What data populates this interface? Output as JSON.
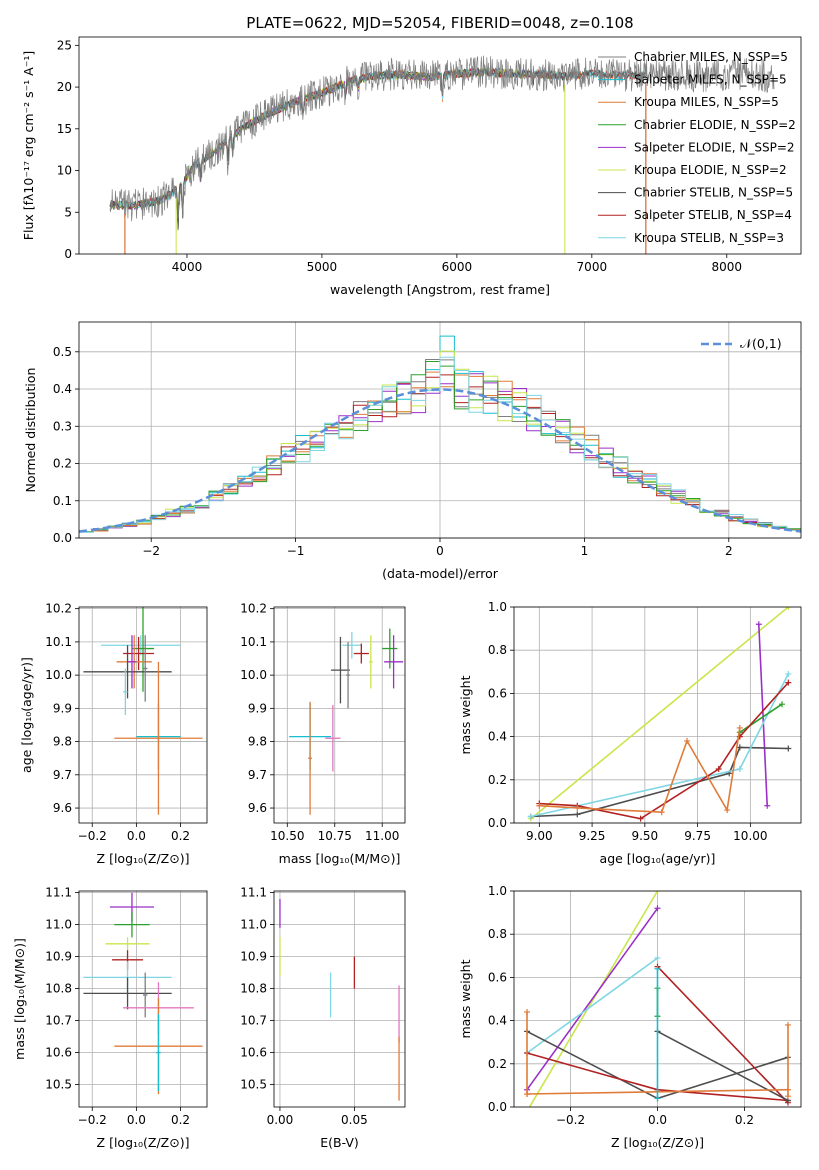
{
  "figure_title": "PLATE=0622, MJD=52054, FIBERID=0048, z=0.108",
  "colors": {
    "chabrier_miles": "#7f7f7f",
    "salpeter_miles": "#17becf",
    "kroupa_miles": "#e07b39",
    "chabrier_elodie": "#2ca02c",
    "salpeter_elodie": "#9b30c8",
    "kroupa_elodie": "#c8e64a",
    "chabrier_stelib": "#4d4d4d",
    "salpeter_stelib": "#b22222",
    "kroupa_stelib": "#7fd6e3",
    "pink": "#e377c2",
    "gaussian": "#5b8fd9"
  },
  "chart_data": [
    {
      "type": "line",
      "title": "PLATE=0622, MJD=52054, FIBERID=0048, z=0.108",
      "xlabel": "wavelength [Angstrom, rest frame]",
      "ylabel": "Flux [fλ10⁻¹⁷ erg cm⁻² s⁻¹ A⁻¹]",
      "xlim": [
        3200,
        8550
      ],
      "ylim": [
        0,
        26
      ],
      "xticks": [
        "4000",
        "5000",
        "6000",
        "7000",
        "8000"
      ],
      "yticks": [
        "0",
        "5",
        "10",
        "15",
        "20",
        "25"
      ],
      "legend_position": "upper right",
      "legend": [
        "Chabrier MILES, N_SSP=5",
        "Salpeter MILES, N_SSP=5",
        "Kroupa MILES, N_SSP=5",
        "Chabrier ELODIE, N_SSP=2",
        "Salpeter ELODIE, N_SSP=2",
        "Kroupa ELODIE, N_SSP=2",
        "Chabrier STELIB, N_SSP=5",
        "Salpeter STELIB, N_SSP=4",
        "Kroupa STELIB, N_SSP=3"
      ],
      "continuum": {
        "x": [
          3400,
          3600,
          3800,
          3950,
          4050,
          4200,
          4400,
          4600,
          4800,
          5000,
          5200,
          5400,
          5600,
          5800,
          6000,
          6200,
          6400,
          6600,
          6800,
          7000,
          7200,
          7400,
          7600,
          7800,
          8000,
          8200,
          8350
        ],
        "y": [
          5.9,
          5.8,
          6.4,
          8.0,
          10.5,
          12.2,
          15.0,
          16.8,
          18.2,
          19.3,
          20.7,
          21.4,
          21.5,
          21.2,
          21.6,
          21.8,
          21.6,
          21.6,
          21.3,
          21.6,
          21.4,
          21.4,
          21.4,
          21.3,
          21.6,
          21.6,
          21.1
        ]
      }
    },
    {
      "type": "bar",
      "xlabel": "(data-model)/error",
      "ylabel": "Normed distribution",
      "xlim": [
        -2.5,
        2.5
      ],
      "ylim": [
        0,
        0.58
      ],
      "xticks": [
        "−2",
        "−1",
        "0",
        "1",
        "2"
      ],
      "yticks": [
        "0.0",
        "0.1",
        "0.2",
        "0.3",
        "0.4",
        "0.5"
      ],
      "legend": [
        "𝒩(0,1)"
      ],
      "legend_position": "upper right",
      "bin_width": 0.1,
      "bin_start": -2.5,
      "series": [
        {
          "color": "#17becf",
          "offset": 0.012,
          "seed": 3
        },
        {
          "color": "#7f7f7f",
          "offset": -0.01,
          "seed": 7
        },
        {
          "color": "#9b30c8",
          "offset": 0.0,
          "seed": 11
        },
        {
          "color": "#c8e64a",
          "offset": 0.018,
          "seed": 13
        },
        {
          "color": "#b22222",
          "offset": 0.005,
          "seed": 17
        },
        {
          "color": "#e07b39",
          "offset": -0.004,
          "seed": 19
        },
        {
          "color": "#2ca02c",
          "offset": 0.008,
          "seed": 23
        },
        {
          "color": "#7fd6e3",
          "offset": -0.015,
          "seed": 29
        }
      ]
    },
    {
      "type": "scatter",
      "name": "age_vs_Z",
      "xlabel": "Z [log₁₀(Z/Z⊙)]",
      "ylabel": "age  [log₁₀(age/yr)]",
      "xlim": [
        -0.26,
        0.32
      ],
      "ylim": [
        9.555,
        10.205
      ],
      "xticks": [
        "−0.2",
        "0.0",
        "0.2"
      ],
      "yticks": [
        "9.6",
        "9.7",
        "9.8",
        "9.9",
        "10.0",
        "10.1",
        "10.2"
      ],
      "points": [
        {
          "x": 0.02,
          "y": 10.09,
          "xerr": 0.18,
          "yerr": 0.03,
          "color": "#7fd6e3"
        },
        {
          "x": 0.03,
          "y": 10.08,
          "xerr": 0.05,
          "yerr": 0.13,
          "color": "#2ca02c"
        },
        {
          "x": 0.01,
          "y": 10.065,
          "xerr": 0.07,
          "yerr": 0.05,
          "color": "#b22222"
        },
        {
          "x": -0.01,
          "y": 10.04,
          "xerr": 0.08,
          "yerr": 0.08,
          "color": "#e07b39"
        },
        {
          "x": -0.04,
          "y": 10.01,
          "xerr": 0.2,
          "yerr": 0.08,
          "color": "#4d4d4d"
        },
        {
          "x": -0.02,
          "y": 10.04,
          "xerr": 0.02,
          "yerr": 0.08,
          "color": "#9b30c8"
        },
        {
          "x": 0.1,
          "y": 9.815,
          "xerr": 0.1,
          "yerr": 0.1,
          "color": "#17becf"
        },
        {
          "x": 0.1,
          "y": 9.81,
          "xerr": 0.2,
          "yerr": 0.23,
          "color": "#e07b39"
        },
        {
          "x": 0.04,
          "y": 10.02,
          "xerr": 0.01,
          "yerr": 0.1,
          "color": "#7f7f7f"
        },
        {
          "x": -0.05,
          "y": 9.95,
          "xerr": 0.01,
          "yerr": 0.07,
          "color": "#7fd6e3"
        }
      ]
    },
    {
      "type": "scatter",
      "name": "age_vs_mass",
      "xlabel": "mass [log₁₀(M/M⊙)]",
      "ylabel": "",
      "xlim": [
        10.43,
        11.12
      ],
      "ylim": [
        9.555,
        10.205
      ],
      "xticks": [
        "10.50",
        "10.75",
        "11.00"
      ],
      "yticks": [
        "9.6",
        "9.7",
        "9.8",
        "9.9",
        "10.0",
        "10.1",
        "10.2"
      ],
      "points": [
        {
          "x": 10.84,
          "y": 10.09,
          "xerr": 0.05,
          "yerr": 0.04,
          "color": "#7fd6e3"
        },
        {
          "x": 11.04,
          "y": 10.08,
          "xerr": 0.04,
          "yerr": 0.06,
          "color": "#2ca02c"
        },
        {
          "x": 11.06,
          "y": 10.04,
          "xerr": 0.05,
          "yerr": 0.08,
          "color": "#9b30c8"
        },
        {
          "x": 10.94,
          "y": 10.04,
          "xerr": 0.01,
          "yerr": 0.08,
          "color": "#c8e64a"
        },
        {
          "x": 10.89,
          "y": 10.065,
          "xerr": 0.04,
          "yerr": 0.03,
          "color": "#b22222"
        },
        {
          "x": 10.78,
          "y": 10.015,
          "xerr": 0.05,
          "yerr": 0.1,
          "color": "#4d4d4d"
        },
        {
          "x": 10.82,
          "y": 10.0,
          "xerr": 0.01,
          "yerr": 0.1,
          "color": "#7f7f7f"
        },
        {
          "x": 10.62,
          "y": 9.815,
          "xerr": 0.11,
          "yerr": 0.1,
          "color": "#17becf"
        },
        {
          "x": 10.62,
          "y": 9.75,
          "xerr": 0.01,
          "yerr": 0.17,
          "color": "#e07b39"
        },
        {
          "x": 10.74,
          "y": 9.81,
          "xerr": 0.04,
          "yerr": 0.1,
          "color": "#e377c2"
        }
      ]
    },
    {
      "type": "line",
      "name": "weight_vs_age",
      "xlabel": "age  [log₁₀(age/yr)]",
      "ylabel": "mass weight",
      "xlim": [
        8.88,
        10.24
      ],
      "ylim": [
        0,
        1.0
      ],
      "xticks": [
        "9.00",
        "9.25",
        "9.50",
        "9.75",
        "10.00"
      ],
      "yticks": [
        "0.0",
        "0.2",
        "0.4",
        "0.6",
        "0.8",
        "1.0"
      ],
      "series": [
        {
          "color": "#c8e64a",
          "x": [
            8.96,
            10.18
          ],
          "y": [
            0.02,
            1.0
          ]
        },
        {
          "color": "#9b30c8",
          "x": [
            10.04,
            10.08
          ],
          "y": [
            0.92,
            0.08
          ]
        },
        {
          "color": "#4d4d4d",
          "x": [
            8.96,
            9.18,
            9.9,
            9.95,
            10.18
          ],
          "y": [
            0.03,
            0.04,
            0.23,
            0.35,
            0.345
          ]
        },
        {
          "color": "#7fd6e3",
          "x": [
            8.96,
            9.95,
            10.18
          ],
          "y": [
            0.03,
            0.25,
            0.69
          ]
        },
        {
          "color": "#2ca02c",
          "x": [
            9.95,
            10.15
          ],
          "y": [
            0.42,
            0.55
          ]
        },
        {
          "color": "#b22222",
          "x": [
            9.0,
            9.18,
            9.48,
            9.85,
            9.95,
            10.18
          ],
          "y": [
            0.09,
            0.08,
            0.02,
            0.25,
            0.4,
            0.65
          ]
        },
        {
          "color": "#e07b39",
          "x": [
            9.0,
            9.18,
            9.58,
            9.7,
            9.89,
            9.95
          ],
          "y": [
            0.08,
            0.07,
            0.05,
            0.38,
            0.06,
            0.44
          ]
        }
      ]
    },
    {
      "type": "scatter",
      "name": "mass_vs_Z",
      "xlabel": "Z [log₁₀(Z/Z⊙)]",
      "ylabel": "mass [log₁₀(M/M⊙)]",
      "xlim": [
        -0.26,
        0.32
      ],
      "ylim": [
        10.43,
        11.105
      ],
      "xticks": [
        "−0.2",
        "0.0",
        "0.2"
      ],
      "yticks": [
        "10.5",
        "10.6",
        "10.7",
        "10.8",
        "10.9",
        "11.0",
        "11.1"
      ],
      "points": [
        {
          "x": -0.02,
          "y": 11.055,
          "xerr": 0.1,
          "yerr": 0.045,
          "color": "#9b30c8"
        },
        {
          "x": -0.02,
          "y": 11.0,
          "xerr": 0.08,
          "yerr": 0.04,
          "color": "#2ca02c"
        },
        {
          "x": -0.04,
          "y": 10.94,
          "xerr": 0.1,
          "yerr": 0.02,
          "color": "#c8e64a"
        },
        {
          "x": -0.04,
          "y": 10.89,
          "xerr": 0.07,
          "yerr": 0.03,
          "color": "#b22222"
        },
        {
          "x": -0.04,
          "y": 10.835,
          "xerr": 0.2,
          "yerr": 0.05,
          "color": "#7fd6e3"
        },
        {
          "x": -0.04,
          "y": 10.785,
          "xerr": 0.2,
          "yerr": 0.05,
          "color": "#4d4d4d"
        },
        {
          "x": 0.04,
          "y": 10.78,
          "xerr": 0.01,
          "yerr": 0.07,
          "color": "#7f7f7f"
        },
        {
          "x": 0.1,
          "y": 10.74,
          "xerr": 0.16,
          "yerr": 0.08,
          "color": "#e377c2"
        },
        {
          "x": 0.1,
          "y": 10.62,
          "xerr": 0.2,
          "yerr": 0.15,
          "color": "#e07b39"
        },
        {
          "x": 0.1,
          "y": 10.6,
          "xerr": 0.01,
          "yerr": 0.12,
          "color": "#17becf"
        }
      ]
    },
    {
      "type": "scatter",
      "name": "mass_vs_EBV",
      "xlabel": "E(B-V)",
      "ylabel": "",
      "xlim": [
        -0.004,
        0.084
      ],
      "ylim": [
        10.43,
        11.105
      ],
      "xticks": [
        "0.00",
        "0.05"
      ],
      "yticks": [
        "10.5",
        "10.6",
        "10.7",
        "10.8",
        "10.9",
        "11.0",
        "11.1"
      ],
      "points": [
        {
          "x": 0.0,
          "y": 11.035,
          "xerr": 0,
          "yerr": 0.045,
          "color": "#9b30c8"
        },
        {
          "x": 0.0,
          "y": 10.9,
          "xerr": 0,
          "yerr": 0.06,
          "color": "#c8e64a"
        },
        {
          "x": 0.034,
          "y": 10.78,
          "xerr": 0,
          "yerr": 0.07,
          "color": "#7fd6e3"
        },
        {
          "x": 0.05,
          "y": 10.85,
          "xerr": 0,
          "yerr": 0.05,
          "color": "#b22222"
        },
        {
          "x": 0.08,
          "y": 10.72,
          "xerr": 0,
          "yerr": 0.09,
          "color": "#e377c2"
        },
        {
          "x": 0.08,
          "y": 10.55,
          "xerr": 0,
          "yerr": 0.1,
          "color": "#e07b39"
        }
      ]
    },
    {
      "type": "line",
      "name": "weight_vs_Z",
      "xlabel": "Z [log₁₀(Z/Z⊙)]",
      "ylabel": "mass weight",
      "xlim": [
        -0.33,
        0.33
      ],
      "ylim": [
        0,
        1.0
      ],
      "xticks": [
        "−0.2",
        "0.0",
        "0.2"
      ],
      "yticks": [
        "0.0",
        "0.2",
        "0.4",
        "0.6",
        "0.8",
        "1.0"
      ],
      "series": [
        {
          "color": "#c8e64a",
          "x": [
            -0.3,
            0.0
          ],
          "y": [
            -0.02,
            1.0
          ]
        },
        {
          "color": "#9b30c8",
          "x": [
            -0.3,
            0.0
          ],
          "y": [
            0.08,
            0.92
          ]
        },
        {
          "color": "#7fd6e3",
          "x": [
            -0.3,
            0.0
          ],
          "y": [
            0.25,
            0.69
          ]
        },
        {
          "color": "#4d4d4d",
          "x": [
            -0.3,
            0.0,
            0.3
          ],
          "y": [
            0.35,
            0.04,
            0.23
          ]
        },
        {
          "color": "#b22222",
          "x": [
            -0.3,
            0.0,
            0.3
          ],
          "y": [
            0.25,
            0.08,
            0.03
          ]
        },
        {
          "color": "#b22222",
          "x": [
            0.0,
            0.3
          ],
          "y": [
            0.65,
            0.02
          ]
        },
        {
          "color": "#4d4d4d",
          "x": [
            0.0,
            0.3
          ],
          "y": [
            0.35,
            0.03
          ]
        },
        {
          "color": "#e07b39",
          "x": [
            -0.3,
            0.3
          ],
          "y": [
            0.06,
            0.08
          ]
        },
        {
          "color": "#e07b39",
          "x": [
            -0.3,
            -0.3
          ],
          "y": [
            0.06,
            0.44
          ]
        },
        {
          "color": "#e07b39",
          "x": [
            0.3,
            0.3
          ],
          "y": [
            0.05,
            0.38
          ]
        },
        {
          "color": "#2ca02c",
          "x": [
            0.0,
            0.0
          ],
          "y": [
            0.42,
            0.55
          ]
        },
        {
          "color": "#17becf",
          "x": [
            0.0,
            0.0
          ],
          "y": [
            0.04,
            0.64
          ]
        }
      ]
    }
  ]
}
